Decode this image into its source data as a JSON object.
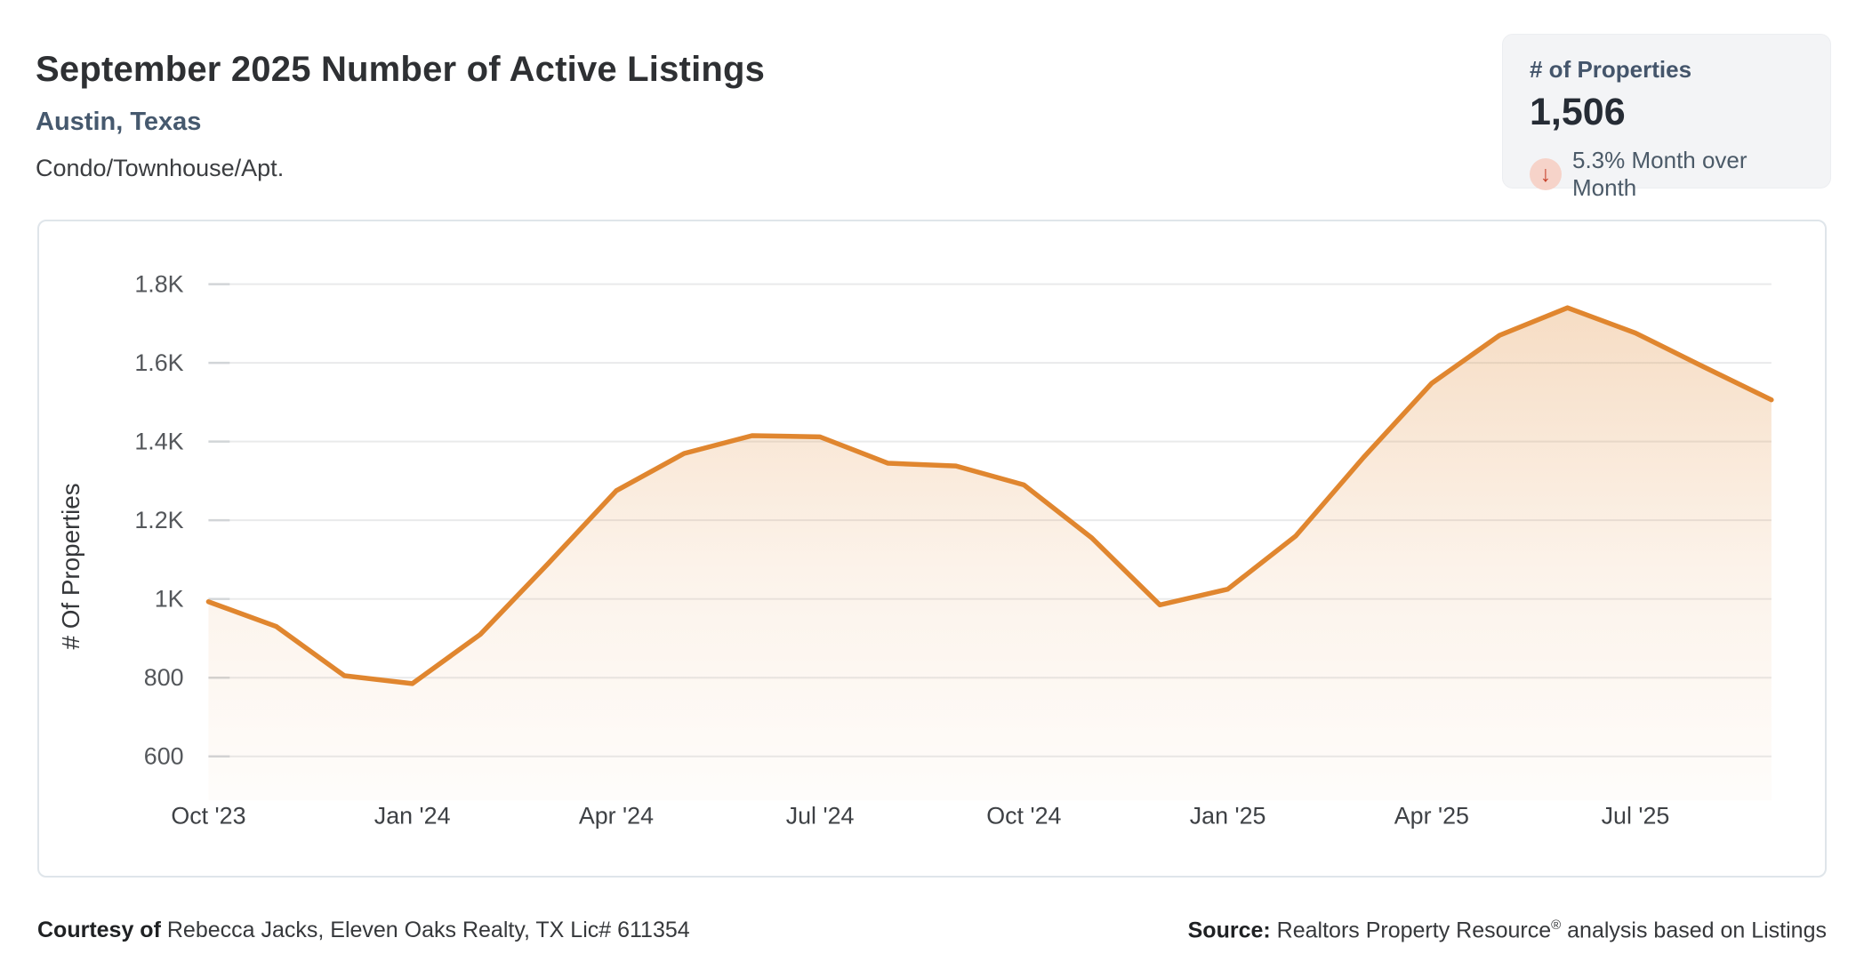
{
  "header": {
    "title": "September 2025 Number of Active Listings",
    "subtitle": "Austin, Texas",
    "property_type": "Condo/Townhouse/Apt."
  },
  "stat_card": {
    "label": "# of Properties",
    "value": "1,506",
    "arrow_icon": "↓",
    "change_text": "5.3% Month over Month",
    "change_direction": "down",
    "colors": {
      "arrow": "#c6402a",
      "arrow_bg": "#f6d3c9"
    }
  },
  "chart_data": {
    "type": "area",
    "title": "September 2025 Number of Active Listings",
    "ylabel": "# Of Properties",
    "x": [
      "Oct '23",
      "Nov '23",
      "Dec '23",
      "Jan '24",
      "Feb '24",
      "Mar '24",
      "Apr '24",
      "May '24",
      "Jun '24",
      "Jul '24",
      "Aug '24",
      "Sep '24",
      "Oct '24",
      "Nov '24",
      "Dec '24",
      "Jan '25",
      "Feb '25",
      "Mar '25",
      "Apr '25",
      "May '25",
      "Jun '25",
      "Jul '25",
      "Aug '25",
      "Sep '25"
    ],
    "values": [
      993,
      930,
      805,
      785,
      910,
      1090,
      1275,
      1370,
      1415,
      1412,
      1345,
      1338,
      1290,
      1155,
      985,
      1025,
      1160,
      1360,
      1548,
      1670,
      1740,
      1676,
      1590,
      1506
    ],
    "x_tick_labels": [
      "Oct '23",
      "Jan '24",
      "Apr '24",
      "Jul '24",
      "Oct '24",
      "Jan '25",
      "Apr '25",
      "Jul '25"
    ],
    "x_tick_indices": [
      0,
      3,
      6,
      9,
      12,
      15,
      18,
      21
    ],
    "y_ticks": [
      {
        "label": "1.8K",
        "value": 1800
      },
      {
        "label": "1.6K",
        "value": 1600
      },
      {
        "label": "1.4K",
        "value": 1400
      },
      {
        "label": "1.2K",
        "value": 1200
      },
      {
        "label": "1K",
        "value": 1000
      },
      {
        "label": "800",
        "value": 800
      },
      {
        "label": "600",
        "value": 600
      }
    ],
    "ylim": [
      600,
      1800
    ],
    "grid": true,
    "legend": false,
    "line_color": "#e0862f",
    "fill_color": "#e0862f"
  },
  "footer": {
    "courtesy_label": "Courtesy of",
    "courtesy_text": "Rebecca Jacks, Eleven Oaks Realty, TX Lic# 611354",
    "source_label": "Source:",
    "source_name": "Realtors Property Resource",
    "source_reg": "®",
    "source_rest": " analysis based on Listings"
  }
}
